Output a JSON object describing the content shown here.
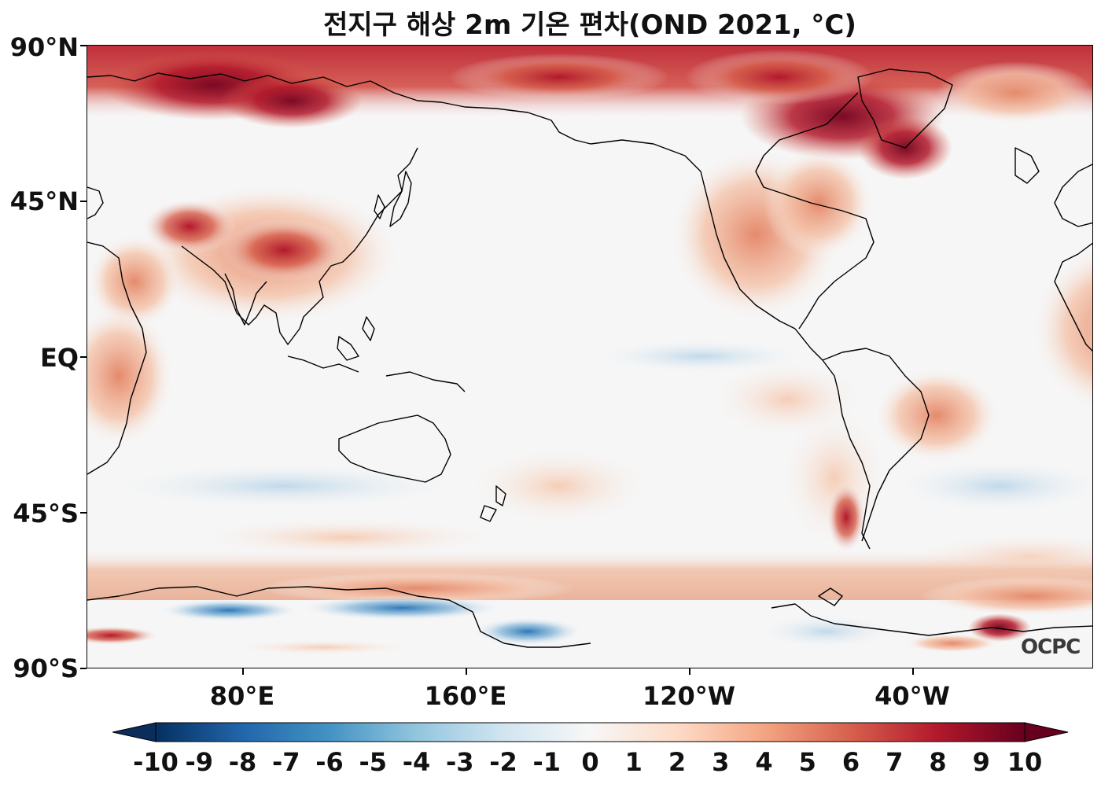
{
  "title": "전지구 해상 2m 기온 편차(OND 2021, °C)",
  "watermark": "OCPC",
  "lat_labels": [
    "90°N",
    "45°N",
    "EQ",
    "45°S",
    "90°S"
  ],
  "lon_labels": [
    "80°E",
    "160°E",
    "120°W",
    "40°W"
  ],
  "colorbar": {
    "ticks": [
      "-10",
      "-9",
      "-8",
      "-7",
      "-6",
      "-5",
      "-4",
      "-3",
      "-2",
      "-1",
      "0",
      "1",
      "2",
      "3",
      "4",
      "5",
      "6",
      "7",
      "8",
      "9",
      "10"
    ],
    "extend": "both",
    "colormap": "RdBu_r",
    "colors": {
      "min": "#0a2d5c",
      "neg": "#2e78b7",
      "neg_light": "#cfe2ef",
      "zero": "#f6f6f6",
      "pos_light": "#f6d3c1",
      "pos": "#d6604d",
      "max": "#67001f"
    }
  },
  "map": {
    "projection": "PlateCarree, central longitude 180°",
    "coastline_color": "#000000"
  }
}
